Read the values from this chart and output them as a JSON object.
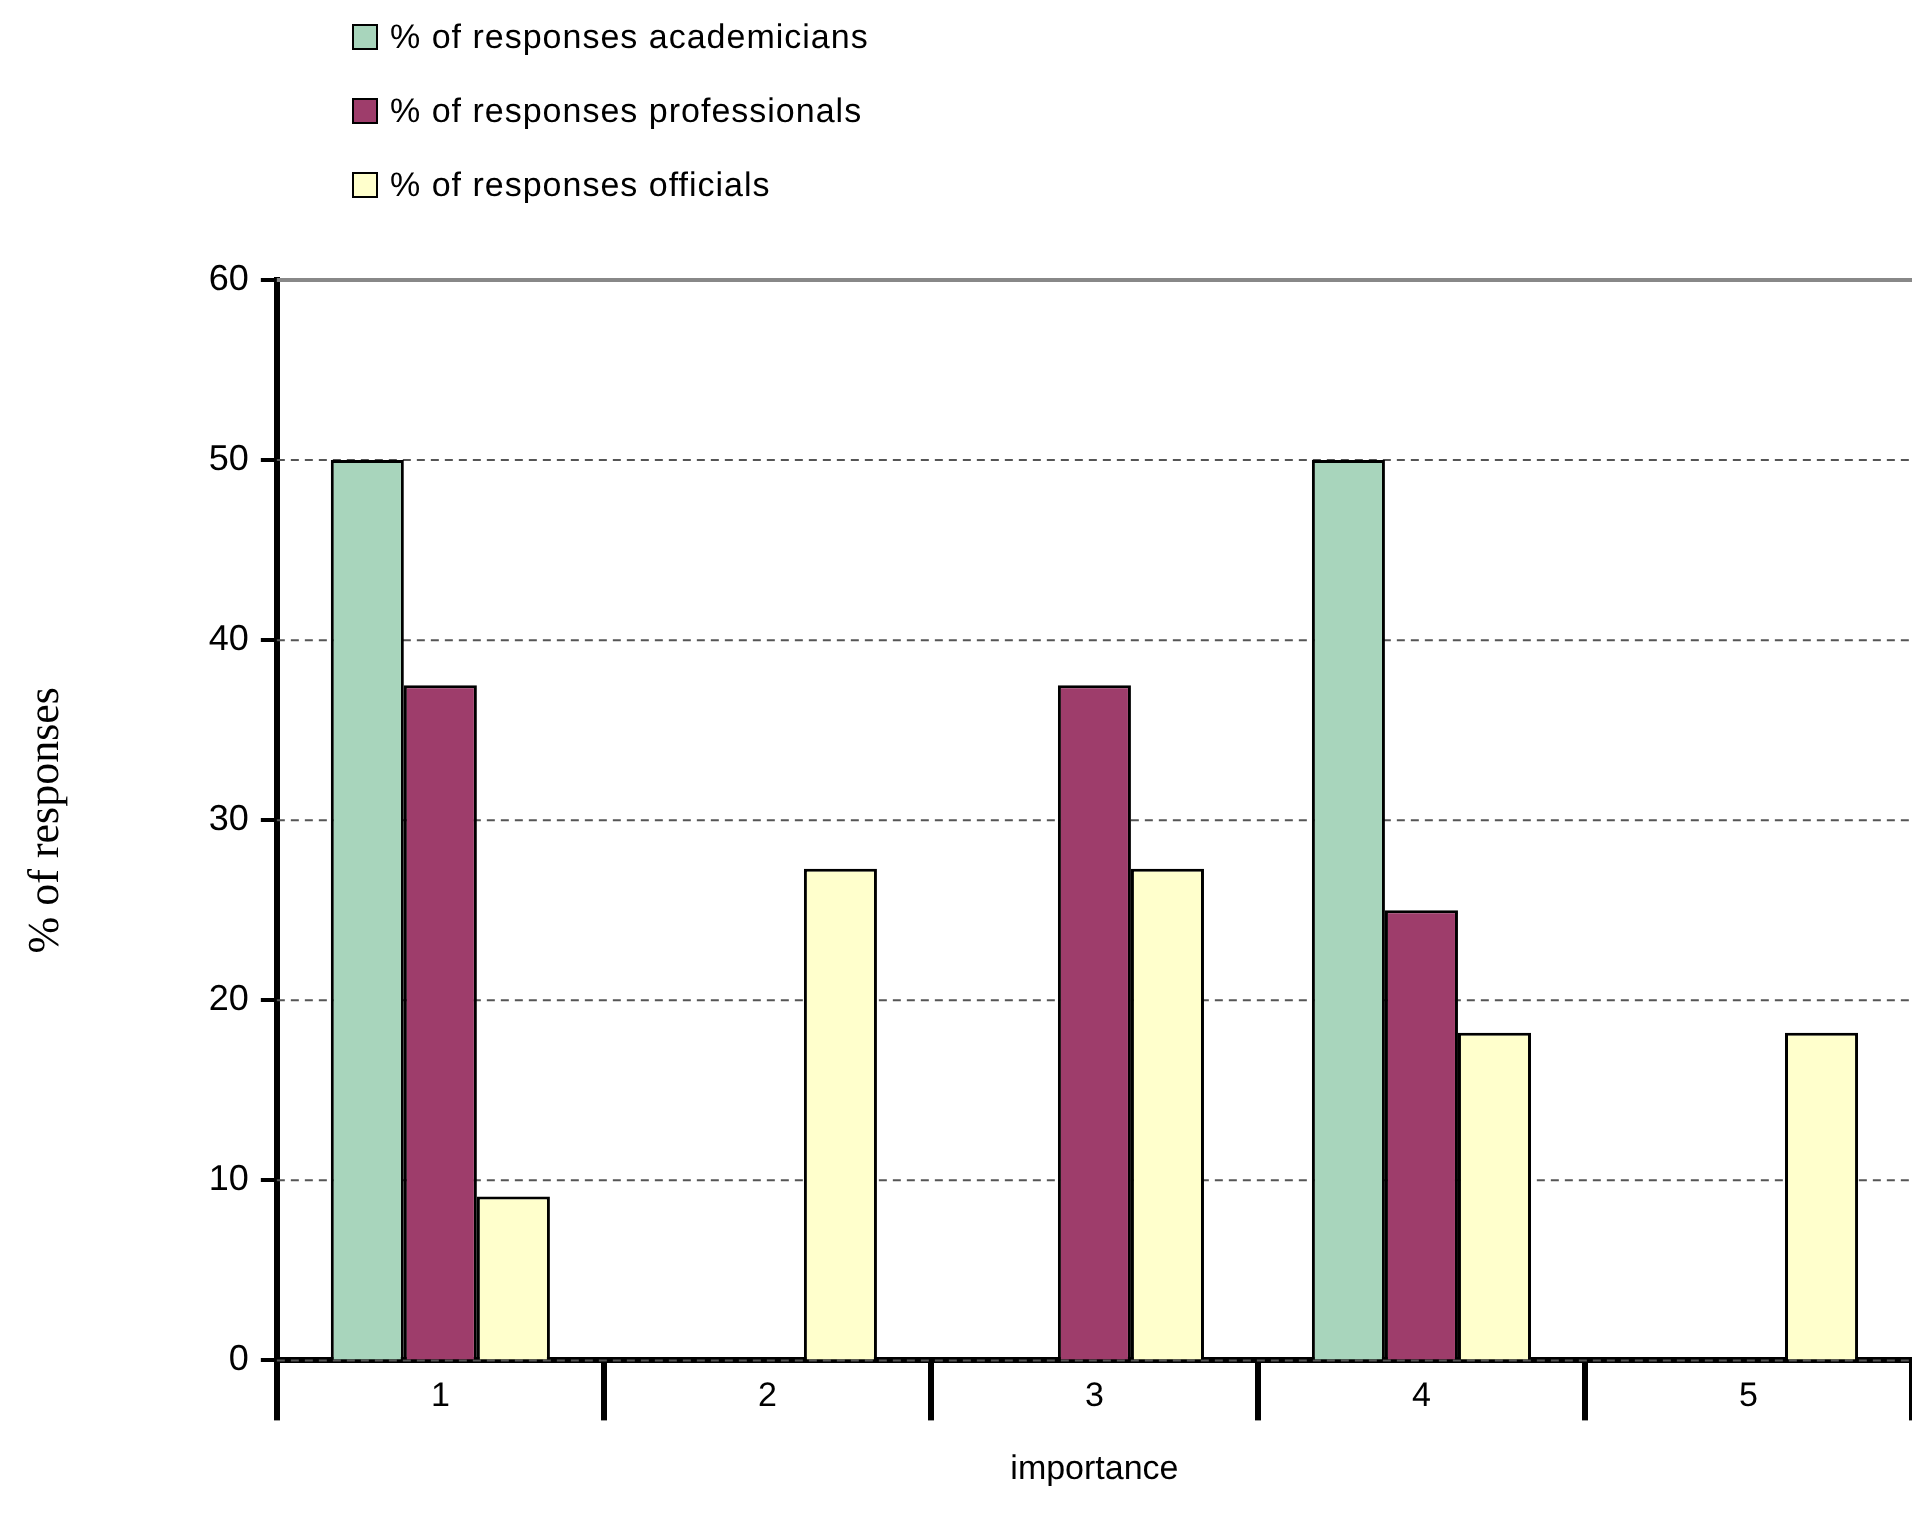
{
  "chart_data": {
    "type": "bar",
    "xlabel": "importance",
    "ylabel": "% of responses",
    "categories": [
      "1",
      "2",
      "3",
      "4",
      "5"
    ],
    "series": [
      {
        "name": "% of responses academicians",
        "color": "#a8d5bc",
        "values": [
          50,
          null,
          null,
          50,
          null
        ]
      },
      {
        "name": "% of responses professionals",
        "color": "#9e3d6b",
        "values": [
          37.5,
          null,
          37.5,
          25,
          null
        ]
      },
      {
        "name": "% of responses officials",
        "color": "#ffffcc",
        "values": [
          9.1,
          27.3,
          27.3,
          18.2,
          18.2
        ]
      }
    ],
    "ylim": [
      0,
      60
    ],
    "yticks": [
      0,
      10,
      20,
      30,
      40,
      50,
      60
    ],
    "grid": "y",
    "legend": "top left"
  }
}
